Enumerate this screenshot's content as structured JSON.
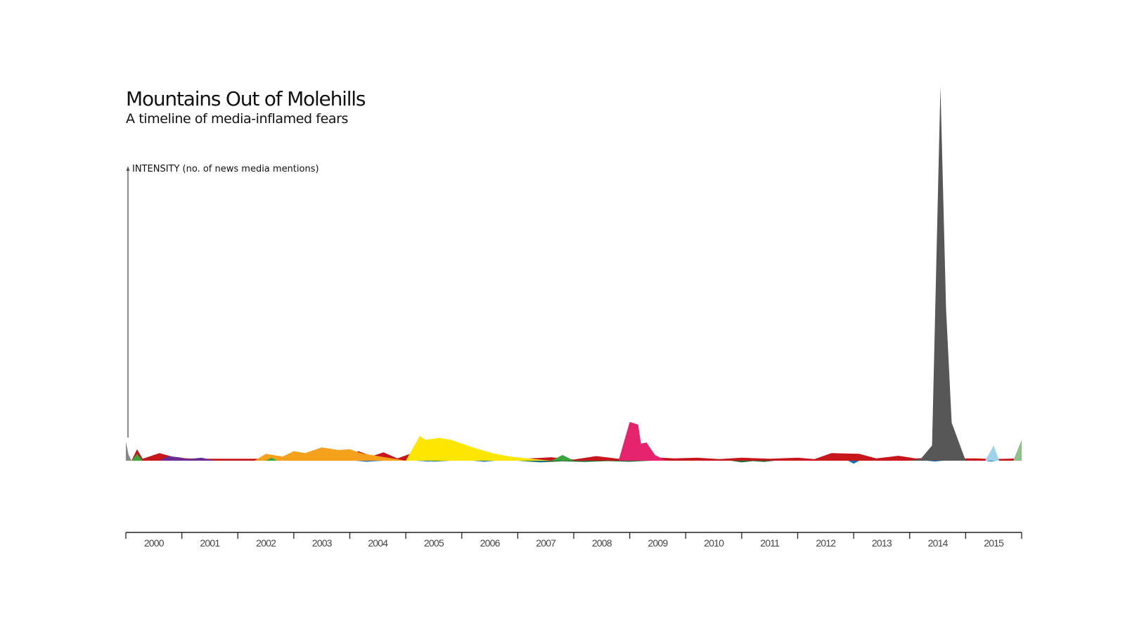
{
  "chart_data": {
    "type": "area",
    "title": "Mountains Out of Molehills",
    "subtitle": "A timeline of media-inflamed fears",
    "ylabel": "INTENSITY (no. of news media mentions)",
    "xlabel": "",
    "x_range": [
      2000,
      2016
    ],
    "categories": [
      "2000",
      "2001",
      "2002",
      "2003",
      "2004",
      "2005",
      "2006",
      "2007",
      "2008",
      "2009",
      "2010",
      "2011",
      "2012",
      "2013",
      "2014",
      "2015"
    ],
    "ylim": [
      0,
      100
    ],
    "grid": false,
    "legend": "none",
    "series": [
      {
        "color": "#888888",
        "side": "up",
        "points": [
          [
            2000.0,
            5
          ],
          [
            2000.05,
            1.5
          ],
          [
            2000.1,
            0
          ]
        ]
      },
      {
        "color": "#c8161d",
        "side": "up",
        "points": [
          [
            2000.1,
            0
          ],
          [
            2000.2,
            3
          ],
          [
            2000.3,
            0.5
          ],
          [
            2000.6,
            2
          ],
          [
            2000.9,
            0.8
          ],
          [
            2001.2,
            0.5
          ],
          [
            2002.4,
            0.5
          ],
          [
            2002.6,
            1.5
          ],
          [
            2002.8,
            0.8
          ],
          [
            2003.0,
            1.6
          ],
          [
            2003.3,
            0.8
          ],
          [
            2003.6,
            1.5
          ],
          [
            2003.9,
            0.8
          ],
          [
            2004.15,
            2.5
          ],
          [
            2004.4,
            1.2
          ],
          [
            2004.6,
            2.2
          ],
          [
            2004.85,
            0.6
          ],
          [
            2005.15,
            2.2
          ],
          [
            2005.4,
            1.0
          ],
          [
            2005.6,
            1.6
          ],
          [
            2005.9,
            0.5
          ],
          [
            2006.2,
            1.6
          ],
          [
            2006.5,
            0.6
          ],
          [
            2006.8,
            1.0
          ],
          [
            2007.0,
            0.4
          ],
          [
            2007.6,
            0.9
          ],
          [
            2008.0,
            0.3
          ],
          [
            2008.4,
            1.2
          ],
          [
            2008.8,
            0.5
          ],
          [
            2009.3,
            1.0
          ],
          [
            2009.8,
            0.6
          ],
          [
            2010.2,
            0.8
          ],
          [
            2010.6,
            0.4
          ],
          [
            2011.0,
            0.8
          ],
          [
            2011.5,
            0.5
          ],
          [
            2012.0,
            0.8
          ],
          [
            2012.3,
            0.4
          ],
          [
            2012.6,
            2.0
          ],
          [
            2013.1,
            1.8
          ],
          [
            2013.4,
            0.6
          ],
          [
            2013.8,
            1.3
          ],
          [
            2014.1,
            0.6
          ],
          [
            2014.5,
            0.8
          ],
          [
            2014.8,
            0.6
          ],
          [
            2015.2,
            0.6
          ],
          [
            2015.5,
            0.4
          ],
          [
            2015.95,
            0.6
          ],
          [
            2016.0,
            0
          ]
        ]
      },
      {
        "color": "#6a2c91",
        "side": "up",
        "points": [
          [
            2000.6,
            0
          ],
          [
            2000.75,
            1.2
          ],
          [
            2001.0,
            0.8
          ],
          [
            2001.1,
            0.4
          ],
          [
            2001.35,
            0.8
          ],
          [
            2001.6,
            0
          ]
        ]
      },
      {
        "color": "#f5a11c",
        "side": "up",
        "points": [
          [
            2002.3,
            0
          ],
          [
            2002.5,
            1.8
          ],
          [
            2002.8,
            1.1
          ],
          [
            2003.0,
            2.5
          ],
          [
            2003.2,
            2.0
          ],
          [
            2003.5,
            3.5
          ],
          [
            2003.8,
            2.8
          ],
          [
            2004.0,
            3.0
          ],
          [
            2004.2,
            2.0
          ],
          [
            2004.5,
            1.2
          ],
          [
            2004.8,
            0.5
          ],
          [
            2005.0,
            0
          ]
        ]
      },
      {
        "color": "#ffe600",
        "side": "up",
        "points": [
          [
            2005.0,
            0
          ],
          [
            2005.25,
            6.5
          ],
          [
            2005.35,
            5.5
          ],
          [
            2005.6,
            6.0
          ],
          [
            2005.8,
            5.5
          ],
          [
            2006.0,
            4.5
          ],
          [
            2006.3,
            3.0
          ],
          [
            2006.6,
            1.8
          ],
          [
            2006.9,
            1.0
          ],
          [
            2007.3,
            0.4
          ],
          [
            2007.6,
            0
          ]
        ]
      },
      {
        "color": "#e6246e",
        "side": "up",
        "points": [
          [
            2008.8,
            0
          ],
          [
            2009.0,
            10.2
          ],
          [
            2009.15,
            9.5
          ],
          [
            2009.2,
            4.5
          ],
          [
            2009.3,
            4.8
          ],
          [
            2009.45,
            1.5
          ],
          [
            2009.65,
            0
          ]
        ]
      },
      {
        "color": "#575757",
        "side": "up",
        "points": [
          [
            2014.0,
            0
          ],
          [
            2014.2,
            0.5
          ],
          [
            2014.4,
            4.0
          ],
          [
            2014.55,
            98.5
          ],
          [
            2014.65,
            40.0
          ],
          [
            2014.75,
            10.0
          ],
          [
            2015.0,
            0
          ]
        ]
      },
      {
        "color": "#9fd3ea",
        "side": "up",
        "points": [
          [
            2015.35,
            0
          ],
          [
            2015.5,
            4.0
          ],
          [
            2015.6,
            0
          ]
        ]
      },
      {
        "color": "#8fbf8b",
        "side": "up",
        "points": [
          [
            2015.85,
            0
          ],
          [
            2016.0,
            5.5
          ],
          [
            2016.0,
            0
          ]
        ]
      },
      {
        "color": "#3aa53a",
        "side": "up",
        "points": [
          [
            2000.1,
            0
          ],
          [
            2000.2,
            1.8
          ],
          [
            2000.3,
            0
          ],
          [
            2002.5,
            0
          ],
          [
            2002.6,
            0.8
          ],
          [
            2002.7,
            0
          ],
          [
            2007.6,
            0
          ],
          [
            2007.8,
            1.5
          ],
          [
            2008.0,
            0
          ]
        ]
      },
      {
        "color": "#1f6e2d",
        "side": "down",
        "points": [
          [
            2005.2,
            0
          ],
          [
            2005.5,
            0.4
          ],
          [
            2005.8,
            0
          ],
          [
            2007.0,
            0
          ],
          [
            2007.4,
            0.8
          ],
          [
            2007.8,
            0.3
          ],
          [
            2008.2,
            0.6
          ],
          [
            2008.6,
            0.2
          ],
          [
            2009.0,
            0.5
          ],
          [
            2009.4,
            0
          ],
          [
            2010.8,
            0
          ],
          [
            2011.0,
            0.8
          ],
          [
            2011.2,
            0.2
          ],
          [
            2011.4,
            0.6
          ],
          [
            2011.6,
            0
          ]
        ]
      },
      {
        "color": "#1a6fb3",
        "side": "down",
        "points": [
          [
            2004.1,
            0
          ],
          [
            2004.3,
            0.5
          ],
          [
            2004.6,
            0
          ],
          [
            2005.2,
            0
          ],
          [
            2005.4,
            0.4
          ],
          [
            2005.6,
            0
          ],
          [
            2006.2,
            0
          ],
          [
            2006.4,
            0.5
          ],
          [
            2006.6,
            0
          ],
          [
            2007.2,
            0
          ],
          [
            2007.4,
            0.6
          ],
          [
            2007.6,
            0
          ],
          [
            2012.9,
            0
          ],
          [
            2013.0,
            1.4
          ],
          [
            2013.1,
            0
          ],
          [
            2014.3,
            0
          ],
          [
            2014.45,
            0.4
          ],
          [
            2014.6,
            0
          ],
          [
            2015.35,
            0
          ],
          [
            2015.45,
            0.4
          ],
          [
            2015.55,
            0
          ]
        ]
      }
    ]
  }
}
